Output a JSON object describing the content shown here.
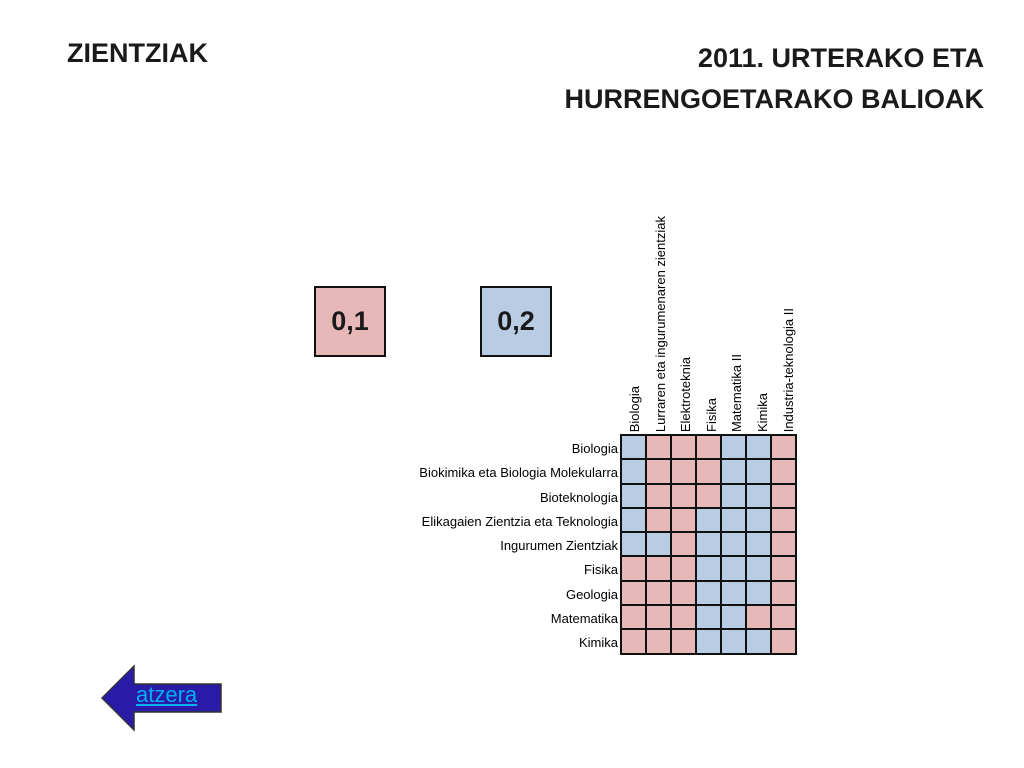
{
  "header": {
    "left_title": "ZIENTZIAK",
    "right_title_line1": "2011. URTERAKO ETA",
    "right_title_line2": "HURRENGOETARAKO BALIOAK"
  },
  "legend": {
    "pink_value": "0,1",
    "blue_value": "0,2",
    "pink_color": "#e6b8b7",
    "blue_color": "#b8cce4"
  },
  "matrix": {
    "columns": [
      "Biologia",
      "Lurraren eta ingurumenaren zientziak",
      "Elektroteknia",
      "Fisika",
      "Matematika II",
      "Kimika",
      "Industria-teknologia II"
    ],
    "rows": [
      {
        "label": "Biologia",
        "cells": [
          "b",
          "p",
          "p",
          "p",
          "b",
          "b",
          "p"
        ]
      },
      {
        "label": "Biokimika eta Biologia Molekularra",
        "cells": [
          "b",
          "p",
          "p",
          "p",
          "b",
          "b",
          "p"
        ]
      },
      {
        "label": "Bioteknologia",
        "cells": [
          "b",
          "p",
          "p",
          "p",
          "b",
          "b",
          "p"
        ]
      },
      {
        "label": "Elikagaien Zientzia eta Teknologia",
        "cells": [
          "b",
          "p",
          "p",
          "b",
          "b",
          "b",
          "p"
        ]
      },
      {
        "label": "Ingurumen Zientziak",
        "cells": [
          "b",
          "b",
          "p",
          "b",
          "b",
          "b",
          "p"
        ]
      },
      {
        "label": "Fisika",
        "cells": [
          "p",
          "p",
          "p",
          "b",
          "b",
          "b",
          "p"
        ]
      },
      {
        "label": "Geologia",
        "cells": [
          "p",
          "p",
          "p",
          "b",
          "b",
          "b",
          "p"
        ]
      },
      {
        "label": "Matematika",
        "cells": [
          "p",
          "p",
          "p",
          "b",
          "b",
          "p",
          "p"
        ]
      },
      {
        "label": "Kimika",
        "cells": [
          "p",
          "p",
          "p",
          "b",
          "b",
          "b",
          "p"
        ]
      }
    ]
  },
  "nav": {
    "back_label": "atzera",
    "back_icon": "left-arrow-icon"
  }
}
